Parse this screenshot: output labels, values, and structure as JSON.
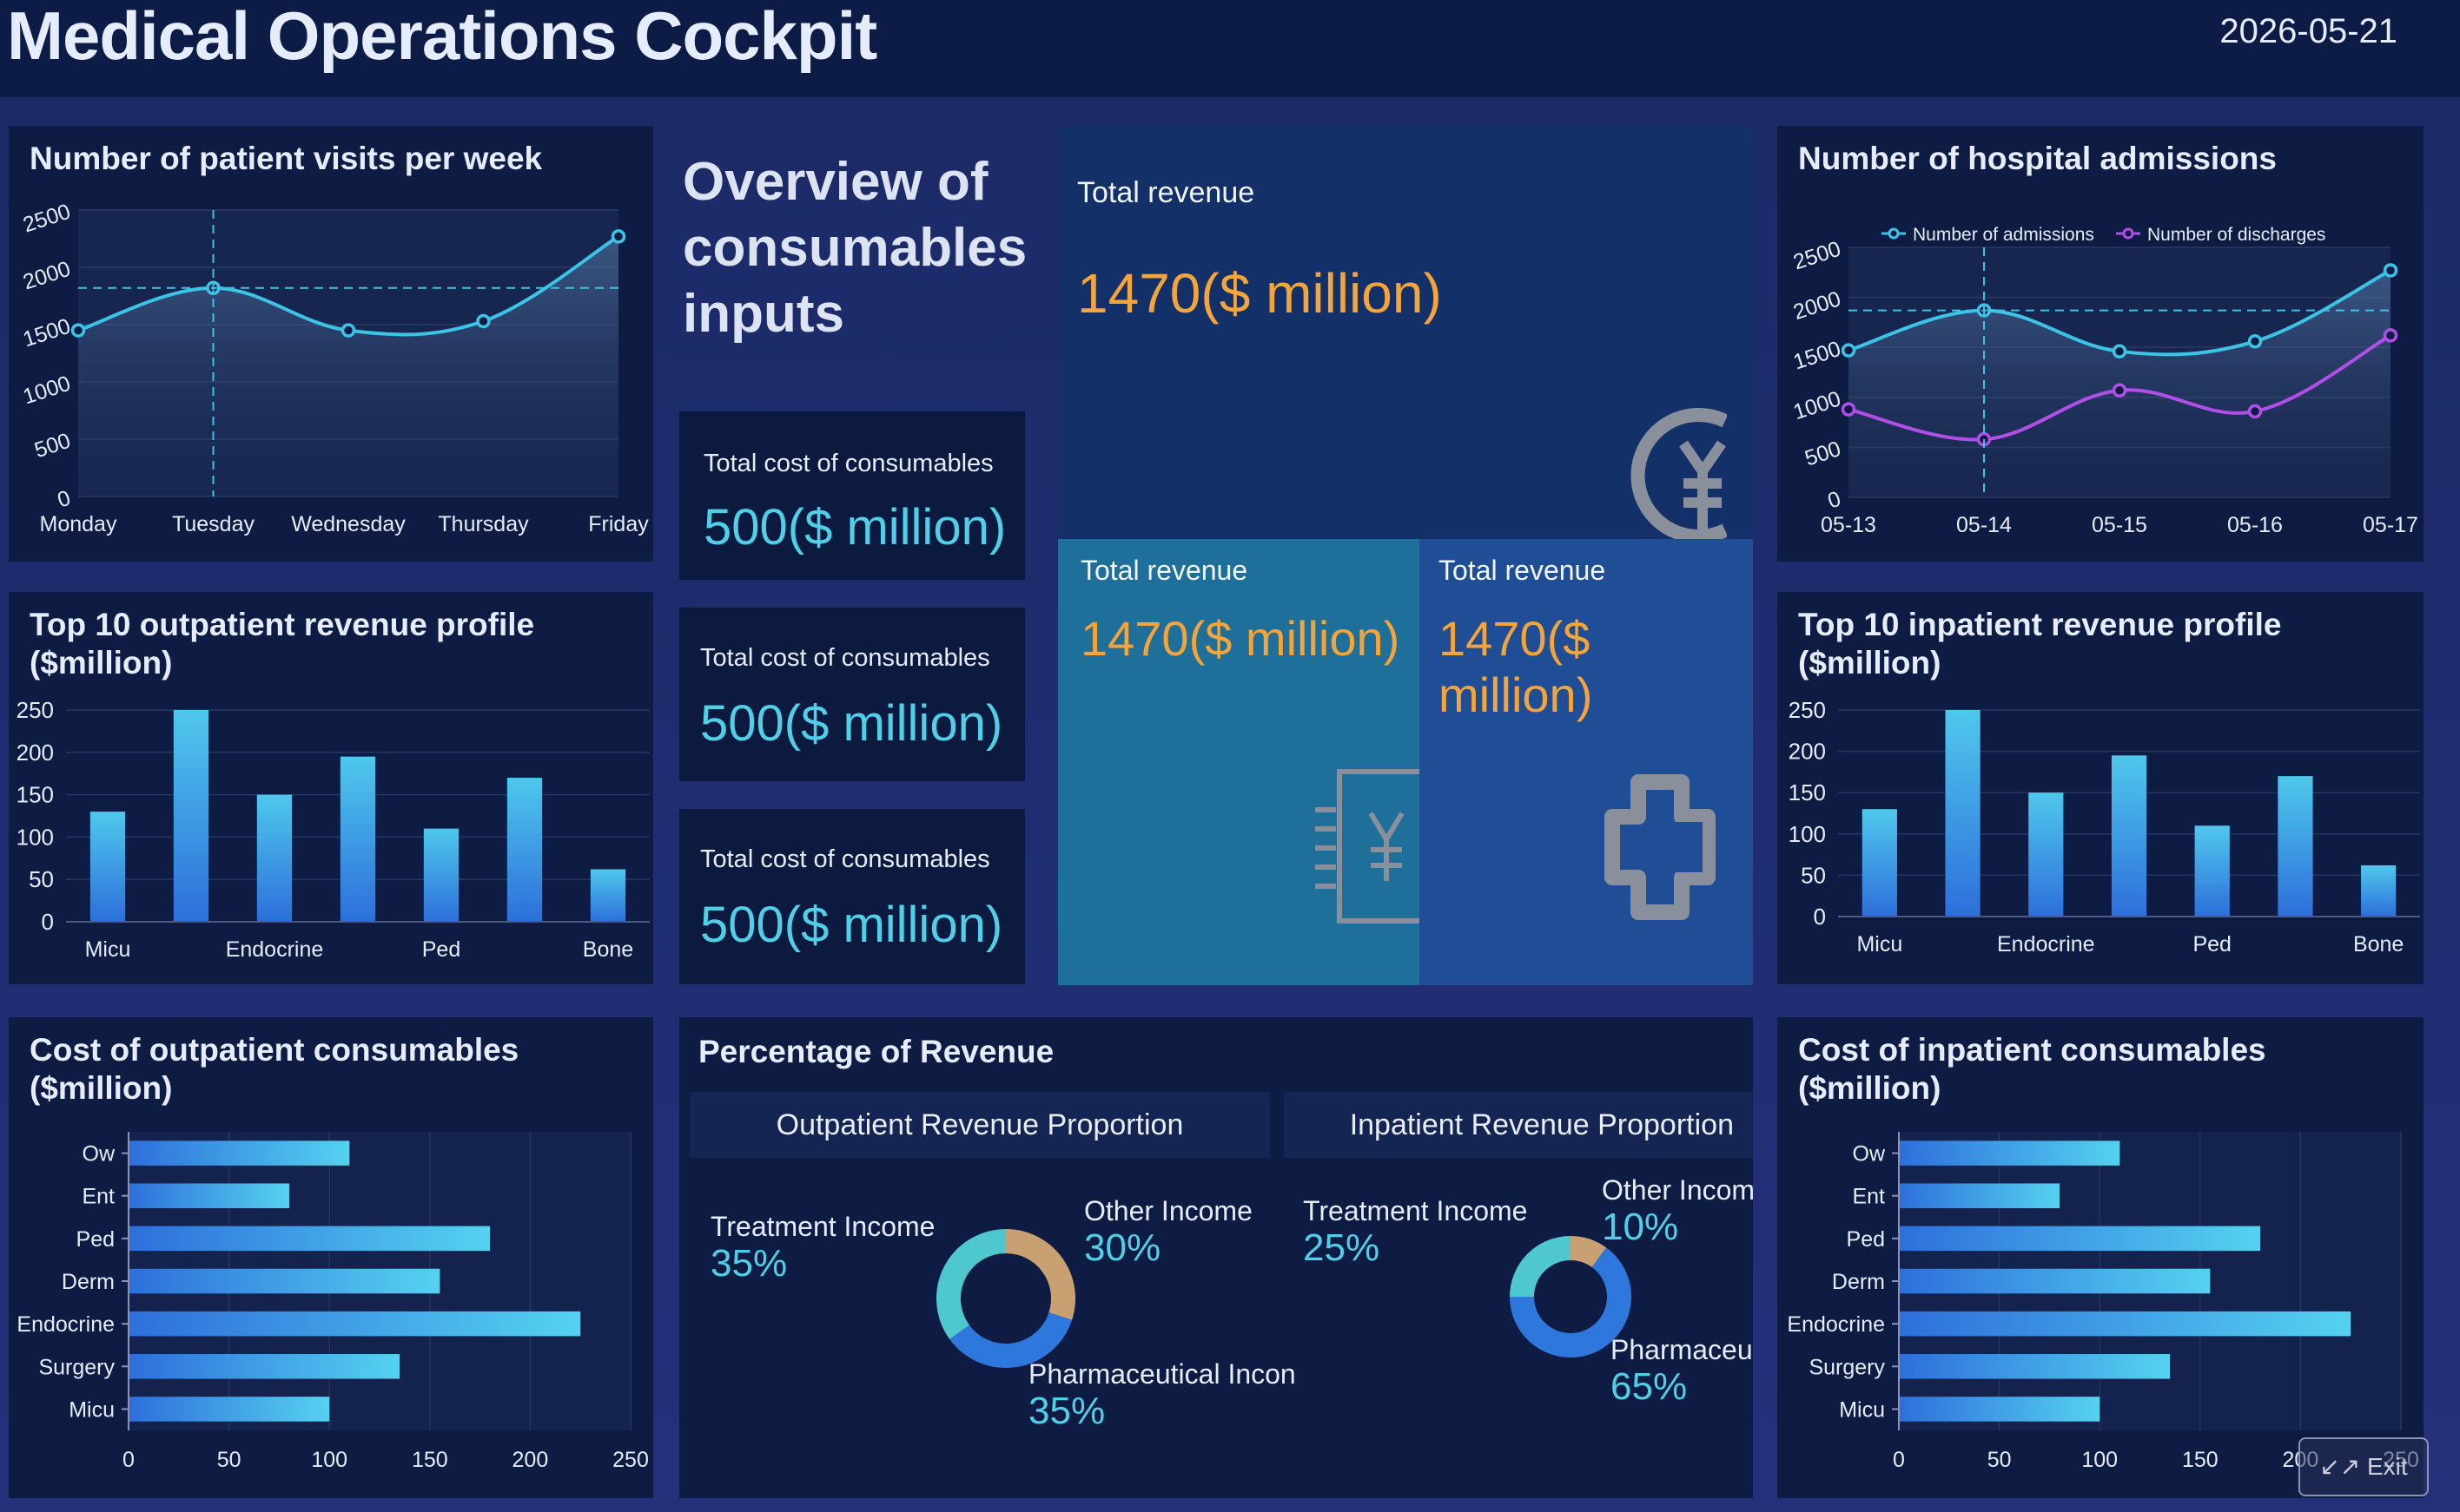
{
  "header": {
    "title": "Medical Operations Cockpit",
    "date": "2026-05-21"
  },
  "overview": {
    "title": "Overview of consumables inputs"
  },
  "cost_cards": [
    {
      "label": "Total cost of consumables",
      "value": "500($ million)"
    },
    {
      "label": "Total cost of consumables",
      "value": "500($ million)"
    },
    {
      "label": "Total cost of consumables",
      "value": "500($ million)"
    }
  ],
  "revenue_cards": [
    {
      "label": "Total revenue",
      "value": "1470($ million)",
      "icon": "yen-coin-icon"
    },
    {
      "label": "Total revenue",
      "value": "1470($ million)",
      "icon": "yen-ledger-icon"
    },
    {
      "label": "Total revenue",
      "value": "1470($ million)",
      "icon": "medical-cross-icon"
    }
  ],
  "exit_button": {
    "label": "Exit"
  },
  "colors": {
    "accent_cyan": "#4fd0e8",
    "accent_orange": "#f3a43a",
    "line_cyan": "#3cc4e6",
    "line_purple": "#b04fe6",
    "bar_blue": "#3a8fe6",
    "donut_teal": "#4ec7cf",
    "donut_tan": "#c9a071",
    "donut_blue": "#2e77dc"
  },
  "chart_data": [
    {
      "id": "weekly_visits",
      "type": "area",
      "title": "Number of patient visits per week",
      "categories": [
        "Monday",
        "Tuesday",
        "Wednesday",
        "Thursday",
        "Friday"
      ],
      "series": [
        {
          "values": [
            1450,
            1820,
            1450,
            1530,
            2270
          ]
        }
      ],
      "yticks": [
        "0",
        "500",
        "1000",
        "1500",
        "2000",
        "2500"
      ],
      "ylim": [
        0,
        2500
      ],
      "highlight_index": 1
    },
    {
      "id": "admissions",
      "type": "line",
      "title": "Number of hospital admissions",
      "categories": [
        "05-13",
        "05-14",
        "05-15",
        "05-16",
        "05-17"
      ],
      "series": [
        {
          "name": "Number of admissions",
          "values": [
            1470,
            1870,
            1460,
            1560,
            2270
          ]
        },
        {
          "name": "Number of discharges",
          "values": [
            880,
            580,
            1070,
            860,
            1620
          ]
        }
      ],
      "yticks": [
        "0",
        "500",
        "1000",
        "1500",
        "2000",
        "2500"
      ],
      "ylim": [
        0,
        2500
      ],
      "highlight_index": 1,
      "legend": "top-center"
    },
    {
      "id": "outpatient_top10",
      "type": "bar",
      "title": "Top 10 outpatient revenue profile ($million)",
      "values": [
        130,
        250,
        150,
        195,
        110,
        170,
        62
      ],
      "xticks": [
        "Micu",
        "Endocrine",
        "Ped",
        "Bone"
      ],
      "yticks": [
        "0",
        "50",
        "100",
        "150",
        "200",
        "250"
      ],
      "ylim": [
        0,
        250
      ]
    },
    {
      "id": "inpatient_top10",
      "type": "bar",
      "title": "Top 10 inpatient revenue profile ($million)",
      "values": [
        130,
        250,
        150,
        195,
        110,
        170,
        62
      ],
      "xticks": [
        "Micu",
        "Endocrine",
        "Ped",
        "Bone"
      ],
      "yticks": [
        "0",
        "50",
        "100",
        "150",
        "200",
        "250"
      ],
      "ylim": [
        0,
        250
      ]
    },
    {
      "id": "outpatient_consumables",
      "type": "bar",
      "orientation": "horizontal",
      "title": "Cost of outpatient consumables ($million)",
      "categories": [
        "Ow",
        "Ent",
        "Ped",
        "Derm",
        "Endocrine",
        "Surgery",
        "Micu"
      ],
      "values": [
        110,
        80,
        180,
        155,
        225,
        135,
        100
      ],
      "xticks": [
        "0",
        "50",
        "100",
        "150",
        "200",
        "250"
      ],
      "xlim": [
        0,
        250
      ]
    },
    {
      "id": "inpatient_consumables",
      "type": "bar",
      "orientation": "horizontal",
      "title": "Cost of inpatient consumables ($million)",
      "categories": [
        "Ow",
        "Ent",
        "Ped",
        "Derm",
        "Endocrine",
        "Surgery",
        "Micu"
      ],
      "values": [
        110,
        80,
        180,
        155,
        225,
        135,
        100
      ],
      "xticks": [
        "0",
        "50",
        "100",
        "150",
        "200",
        "250"
      ],
      "xlim": [
        0,
        250
      ]
    },
    {
      "id": "outpatient_proportion",
      "type": "pie",
      "title": "Outpatient Revenue Proportion",
      "slices": [
        {
          "label": "Other Income",
          "value": 30,
          "pct": "30%"
        },
        {
          "label": "Pharmaceutical Incon",
          "value": 35,
          "pct": "35%"
        },
        {
          "label": "Treatment Income",
          "value": 35,
          "pct": "35%"
        }
      ]
    },
    {
      "id": "inpatient_proportion",
      "type": "pie",
      "title": "Inpatient Revenue Proportion",
      "slices": [
        {
          "label": "Other Income",
          "value": 10,
          "pct": "10%"
        },
        {
          "label": "Pharmaceuti",
          "value": 65,
          "pct": "65%"
        },
        {
          "label": "Treatment Income",
          "value": 25,
          "pct": "25%"
        }
      ]
    }
  ],
  "section": {
    "revenue_percentage_title": "Percentage of Revenue"
  }
}
